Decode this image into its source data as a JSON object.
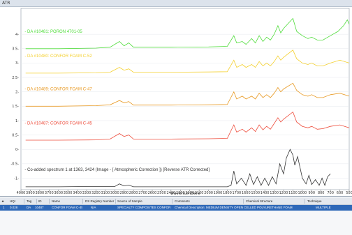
{
  "window": {
    "unit_label": "ATR"
  },
  "chart_data": {
    "type": "line",
    "xlabel": "wavenumbers",
    "ylabel": "",
    "xlim": [
      4000,
      500
    ],
    "ylim": [
      -1.4,
      4.9
    ],
    "x_ticks": [
      4000,
      3900,
      3800,
      3700,
      3600,
      3500,
      3400,
      3300,
      3200,
      3100,
      3000,
      2900,
      2800,
      2700,
      2600,
      2500,
      2400,
      2300,
      2200,
      2100,
      2000,
      1900,
      1800,
      1700,
      1600,
      1500,
      1400,
      1300,
      1200,
      1100,
      1000,
      900,
      800,
      700,
      600,
      500
    ],
    "y_ticks": [
      4,
      3.5,
      3,
      2.5,
      2,
      1.5,
      1,
      0.5,
      0,
      -0.5,
      -1
    ],
    "y_tick_labels": [
      "4-",
      "3.5-",
      "3-",
      "2.5-",
      "2-",
      "1.5-",
      "1-",
      "0.5-",
      "0-",
      "-0.5-",
      "-1-"
    ],
    "series": [
      {
        "name": "- DA #10481: PORON 4701-05",
        "color": "#4fdc3a",
        "points": [
          [
            3950,
            3.5
          ],
          [
            3600,
            3.5
          ],
          [
            3200,
            3.52
          ],
          [
            3050,
            3.55
          ],
          [
            2950,
            3.75
          ],
          [
            2900,
            3.6
          ],
          [
            2850,
            3.7
          ],
          [
            2800,
            3.55
          ],
          [
            2400,
            3.55
          ],
          [
            2000,
            3.56
          ],
          [
            1800,
            3.58
          ],
          [
            1730,
            3.95
          ],
          [
            1700,
            3.7
          ],
          [
            1640,
            3.75
          ],
          [
            1600,
            3.65
          ],
          [
            1540,
            3.85
          ],
          [
            1500,
            3.7
          ],
          [
            1460,
            3.95
          ],
          [
            1420,
            3.75
          ],
          [
            1380,
            3.9
          ],
          [
            1340,
            3.8
          ],
          [
            1300,
            4.0
          ],
          [
            1260,
            4.3
          ],
          [
            1230,
            4.05
          ],
          [
            1200,
            4.2
          ],
          [
            1100,
            4.55
          ],
          [
            1060,
            4.1
          ],
          [
            1000,
            3.95
          ],
          [
            940,
            3.85
          ],
          [
            900,
            3.9
          ],
          [
            840,
            3.8
          ],
          [
            780,
            3.8
          ],
          [
            700,
            3.95
          ],
          [
            620,
            4.1
          ],
          [
            560,
            4.3
          ],
          [
            520,
            4.5
          ],
          [
            500,
            4.35
          ]
        ]
      },
      {
        "name": "- DA #10480: CONFOR FOAM C-52",
        "color": "#f4d02e",
        "points": [
          [
            3950,
            2.65
          ],
          [
            3600,
            2.65
          ],
          [
            3200,
            2.66
          ],
          [
            3050,
            2.68
          ],
          [
            2950,
            2.85
          ],
          [
            2900,
            2.75
          ],
          [
            2850,
            2.8
          ],
          [
            2800,
            2.68
          ],
          [
            2400,
            2.68
          ],
          [
            2000,
            2.69
          ],
          [
            1800,
            2.7
          ],
          [
            1730,
            3.1
          ],
          [
            1700,
            2.85
          ],
          [
            1640,
            2.95
          ],
          [
            1600,
            2.85
          ],
          [
            1540,
            2.95
          ],
          [
            1500,
            2.85
          ],
          [
            1460,
            3.05
          ],
          [
            1420,
            2.9
          ],
          [
            1380,
            3.0
          ],
          [
            1340,
            2.9
          ],
          [
            1300,
            3.05
          ],
          [
            1260,
            3.25
          ],
          [
            1230,
            3.1
          ],
          [
            1200,
            3.2
          ],
          [
            1100,
            3.45
          ],
          [
            1060,
            3.15
          ],
          [
            1000,
            3.0
          ],
          [
            940,
            2.95
          ],
          [
            900,
            3.0
          ],
          [
            840,
            2.9
          ],
          [
            780,
            2.9
          ],
          [
            700,
            3.0
          ],
          [
            600,
            3.1
          ],
          [
            500,
            3.0
          ]
        ]
      },
      {
        "name": "- DA #10489: CONFOR FOAM C-47",
        "color": "#e89a24",
        "points": [
          [
            3950,
            1.5
          ],
          [
            3600,
            1.5
          ],
          [
            3200,
            1.52
          ],
          [
            3050,
            1.55
          ],
          [
            2950,
            1.7
          ],
          [
            2900,
            1.62
          ],
          [
            2850,
            1.66
          ],
          [
            2800,
            1.54
          ],
          [
            2400,
            1.54
          ],
          [
            2000,
            1.55
          ],
          [
            1800,
            1.56
          ],
          [
            1730,
            2.0
          ],
          [
            1700,
            1.75
          ],
          [
            1640,
            1.85
          ],
          [
            1600,
            1.75
          ],
          [
            1540,
            1.85
          ],
          [
            1500,
            1.75
          ],
          [
            1460,
            1.95
          ],
          [
            1420,
            1.8
          ],
          [
            1380,
            1.9
          ],
          [
            1340,
            1.8
          ],
          [
            1300,
            1.95
          ],
          [
            1260,
            2.15
          ],
          [
            1230,
            2.0
          ],
          [
            1200,
            2.1
          ],
          [
            1100,
            2.3
          ],
          [
            1060,
            2.05
          ],
          [
            1000,
            1.9
          ],
          [
            940,
            1.85
          ],
          [
            900,
            1.9
          ],
          [
            840,
            1.8
          ],
          [
            780,
            1.8
          ],
          [
            700,
            1.9
          ],
          [
            600,
            1.95
          ],
          [
            500,
            1.85
          ]
        ]
      },
      {
        "name": "- DA #10487: CONFOR FOAM C-45",
        "color": "#ee4b3a",
        "points": [
          [
            3950,
            0.32
          ],
          [
            3600,
            0.32
          ],
          [
            3200,
            0.33
          ],
          [
            3050,
            0.36
          ],
          [
            2950,
            0.55
          ],
          [
            2900,
            0.45
          ],
          [
            2850,
            0.5
          ],
          [
            2800,
            0.36
          ],
          [
            2400,
            0.36
          ],
          [
            2000,
            0.37
          ],
          [
            1800,
            0.38
          ],
          [
            1730,
            0.85
          ],
          [
            1700,
            0.6
          ],
          [
            1640,
            0.7
          ],
          [
            1600,
            0.6
          ],
          [
            1540,
            0.75
          ],
          [
            1500,
            0.62
          ],
          [
            1460,
            0.85
          ],
          [
            1420,
            0.68
          ],
          [
            1380,
            0.8
          ],
          [
            1340,
            0.7
          ],
          [
            1300,
            0.9
          ],
          [
            1260,
            1.1
          ],
          [
            1230,
            0.95
          ],
          [
            1200,
            1.05
          ],
          [
            1100,
            1.3
          ],
          [
            1060,
            0.95
          ],
          [
            1000,
            0.8
          ],
          [
            940,
            0.75
          ],
          [
            900,
            0.8
          ],
          [
            840,
            0.7
          ],
          [
            780,
            0.72
          ],
          [
            700,
            0.8
          ],
          [
            600,
            0.85
          ],
          [
            500,
            0.75
          ]
        ]
      },
      {
        "name": "- Co-added spectrum 1 at 1363, 3424 (Image - [ Atmospheric Correction ]) [Reverse ATR Corrected]",
        "color": "#333333",
        "points": [
          [
            3950,
            -1.3
          ],
          [
            3600,
            -1.3
          ],
          [
            3300,
            -1.29
          ],
          [
            3000,
            -1.29
          ],
          [
            2950,
            -1.2
          ],
          [
            2900,
            -1.27
          ],
          [
            2850,
            -1.24
          ],
          [
            2800,
            -1.3
          ],
          [
            2400,
            -1.3
          ],
          [
            2000,
            -1.3
          ],
          [
            1800,
            -1.3
          ],
          [
            1760,
            -1.25
          ],
          [
            1730,
            -0.75
          ],
          [
            1700,
            -1.2
          ],
          [
            1650,
            -1.0
          ],
          [
            1600,
            -1.25
          ],
          [
            1560,
            -0.85
          ],
          [
            1520,
            -1.22
          ],
          [
            1480,
            -0.95
          ],
          [
            1440,
            -1.25
          ],
          [
            1400,
            -1.0
          ],
          [
            1360,
            -1.25
          ],
          [
            1320,
            -0.95
          ],
          [
            1280,
            -1.2
          ],
          [
            1240,
            -0.5
          ],
          [
            1200,
            -0.85
          ],
          [
            1170,
            -0.3
          ],
          [
            1130,
            0.0
          ],
          [
            1100,
            -0.2
          ],
          [
            1080,
            -0.55
          ],
          [
            1050,
            -0.25
          ],
          [
            1020,
            -0.7
          ],
          [
            1000,
            -1.0
          ],
          [
            960,
            -1.2
          ],
          [
            930,
            -0.9
          ],
          [
            900,
            -1.22
          ],
          [
            860,
            -1.05
          ],
          [
            820,
            -1.25
          ],
          [
            790,
            -1.0
          ],
          [
            760,
            -1.25
          ],
          [
            730,
            -0.95
          ],
          [
            700,
            -0.85
          ]
        ]
      }
    ]
  },
  "table": {
    "columns": [
      "HQI",
      "Tag",
      "ID",
      "Name",
      "DS Registry Number",
      "Source of Sample",
      "Comments",
      "Chemical Structure",
      "Technique"
    ],
    "row": {
      "cells": [
        "1",
        "0.028",
        "DA",
        "10487",
        "CONFOR FOAM C-45",
        "N/A",
        "SPECIALTY COMPOSITES CONFOR FOAM",
        "Chemical Description: MEDIUM DENSITY OPEN CELLED POLYURETHANE FOAM",
        "",
        "MULTIPLE"
      ]
    }
  }
}
